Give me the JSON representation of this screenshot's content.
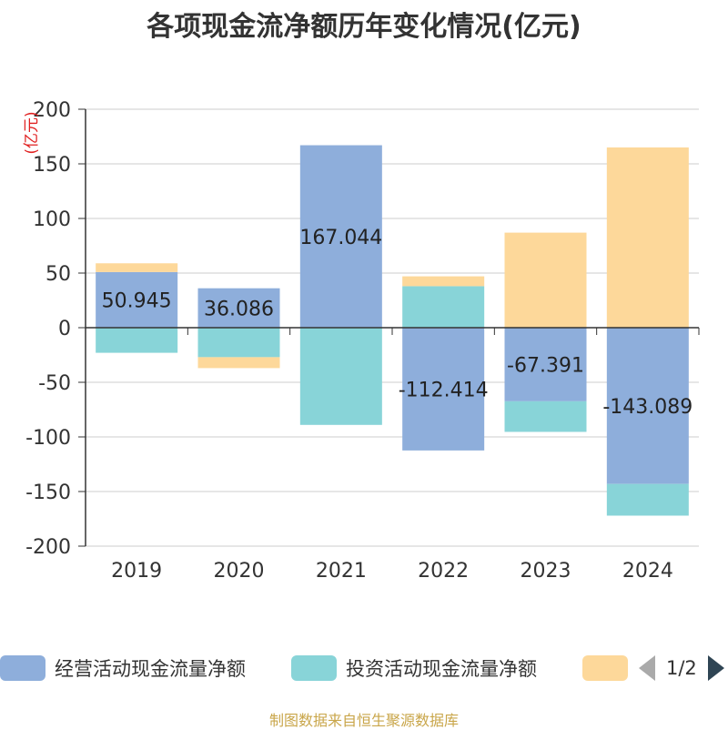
{
  "chart_data": {
    "type": "bar",
    "stacked": true,
    "title": "各项现金流净额历年变化情况(亿元)",
    "ylabel": "(亿元)",
    "categories": [
      "2019",
      "2020",
      "2021",
      "2022",
      "2023",
      "2024"
    ],
    "ylim": [
      -200,
      200
    ],
    "yticks": [
      200,
      150,
      100,
      50,
      0,
      -50,
      -100,
      -150,
      -200
    ],
    "grid": true,
    "legend_position": "bottom",
    "series": [
      {
        "name": "经营活动现金流量净额",
        "color": "#8eaedb",
        "values": [
          50.945,
          36.086,
          167.044,
          -112.414,
          -67.391,
          -143.089
        ],
        "labels": [
          "50.945",
          "36.086",
          "167.044",
          "-112.414",
          "-67.391",
          "-143.089"
        ]
      },
      {
        "name": "投资活动现金流量净额",
        "color": "#88d4d8",
        "values": [
          -23,
          -27,
          -89,
          38,
          -28,
          -29
        ]
      },
      {
        "name": "",
        "color": "#fdd89a",
        "values": [
          8,
          -10,
          0,
          9,
          87,
          165
        ]
      }
    ]
  },
  "legend": {
    "pager": "1/2"
  },
  "source": "制图数据来自恒生聚源数据库"
}
